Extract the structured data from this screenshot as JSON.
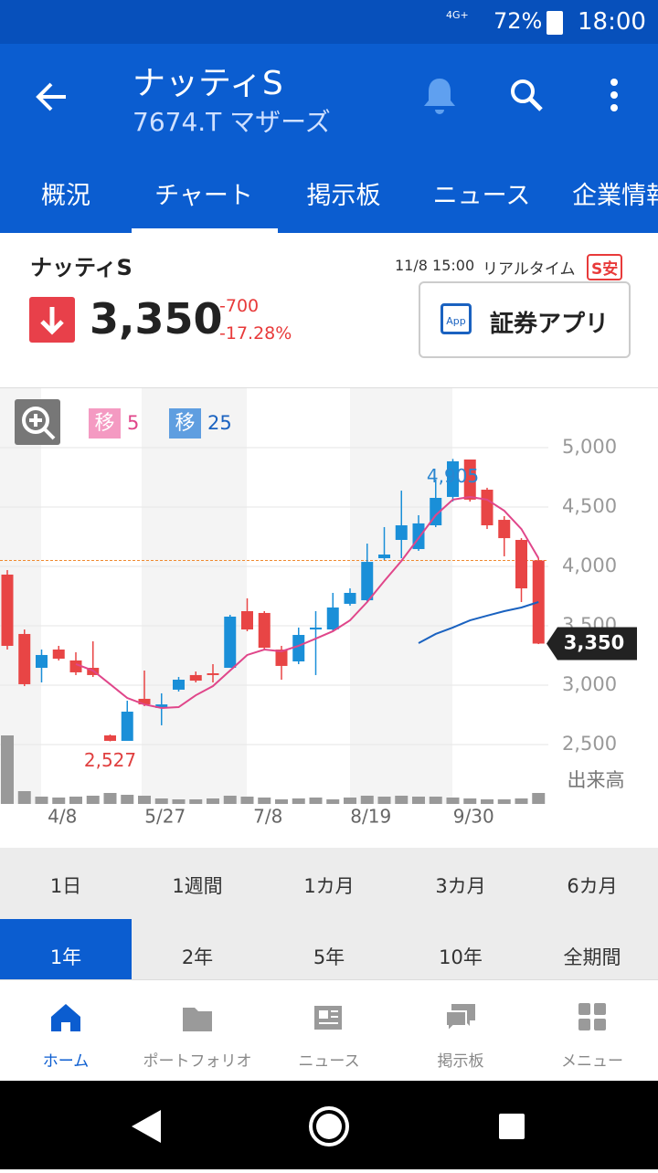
{
  "status_bar": {
    "network": "4G+",
    "battery": "72%",
    "time": "18:00"
  },
  "header": {
    "title": "ナッティS",
    "subtitle": "7674.T マザーズ"
  },
  "tabs": [
    "概況",
    "チャート",
    "掲示板",
    "ニュース",
    "企業情報"
  ],
  "quote": {
    "name": "ナッティS",
    "timestamp": "11/8 15:00",
    "realtime": "リアルタイム",
    "badge": "S安",
    "price": "3,350",
    "change": "-700",
    "change_pct": "-17.28%",
    "app_icon": "App",
    "app_button": "証券アプリ"
  },
  "chart_data": {
    "type": "candlestick",
    "legend": [
      {
        "label": "移",
        "period": 5,
        "color": "#e0468a",
        "box": "#f49ac2"
      },
      {
        "label": "移",
        "period": 25,
        "color": "#1a62c0",
        "box": "#5f9ee0"
      }
    ],
    "ylim": [
      2000,
      5500
    ],
    "yticks": [
      {
        "value": 2500,
        "label": "2,500"
      },
      {
        "value": 3000,
        "label": "3,000"
      },
      {
        "value": 3500,
        "label": "3,500"
      },
      {
        "value": 4000,
        "label": "4,000"
      },
      {
        "value": 4500,
        "label": "4,500"
      },
      {
        "value": 5000,
        "label": "5,000"
      }
    ],
    "categories": [
      null,
      null,
      null,
      "4/8",
      null,
      null,
      null,
      null,
      null,
      "5/27",
      null,
      null,
      null,
      null,
      null,
      "7/8",
      null,
      null,
      null,
      null,
      null,
      "8/19",
      null,
      null,
      null,
      null,
      null,
      "9/30",
      null,
      null,
      null,
      null
    ],
    "open": [
      3931,
      3431,
      3146,
      3300,
      3208,
      3146,
      2577,
      2531,
      2885,
      2808,
      2962,
      3085,
      3100,
      3146,
      3623,
      3608,
      3300,
      3200,
      3469,
      3469,
      3685,
      3715,
      4069,
      4223,
      4146,
      4346,
      4585,
      4900,
      4646,
      4392,
      4223,
      4050
    ],
    "high": [
      3969,
      3469,
      3300,
      3331,
      3277,
      3369,
      2585,
      2869,
      3123,
      2931,
      3069,
      3115,
      3177,
      3592,
      3731,
      3623,
      3331,
      3485,
      3623,
      3777,
      3815,
      4192,
      4331,
      4638,
      4431,
      4731,
      4905,
      4900,
      4662,
      4423,
      4238,
      4069
    ],
    "low": [
      3300,
      2992,
      3023,
      3208,
      3085,
      3069,
      2527,
      2540,
      2823,
      2662,
      2946,
      3023,
      3023,
      3146,
      3454,
      3300,
      3046,
      3177,
      3085,
      3454,
      3669,
      3700,
      4054,
      4069,
      4131,
      4331,
      4546,
      4546,
      4315,
      4085,
      3700,
      3346
    ],
    "close": [
      3331,
      3008,
      3254,
      3223,
      3108,
      3085,
      2531,
      2777,
      2838,
      2838,
      3046,
      3038,
      3085,
      3577,
      3469,
      3315,
      3162,
      3423,
      3485,
      3654,
      3777,
      4038,
      4100,
      4346,
      4362,
      4577,
      4885,
      4562,
      4346,
      4238,
      3815,
      3350
    ],
    "ma5": [
      null,
      null,
      null,
      null,
      3177,
      3123,
      3008,
      2892,
      2838,
      2808,
      2815,
      2915,
      2992,
      3123,
      3254,
      3300,
      3285,
      3331,
      3392,
      3454,
      3546,
      3700,
      3877,
      4046,
      4238,
      4431,
      4562,
      4585,
      4562,
      4469,
      4315,
      4069
    ],
    "ma25": [
      null,
      null,
      null,
      null,
      null,
      null,
      null,
      null,
      null,
      null,
      null,
      null,
      null,
      null,
      null,
      null,
      null,
      null,
      null,
      null,
      null,
      null,
      null,
      null,
      3354,
      3431,
      3485,
      3546,
      3585,
      3623,
      3654,
      3700
    ],
    "volume": [
      75,
      14,
      8,
      7,
      8,
      9,
      12,
      10,
      9,
      6,
      5,
      5,
      6,
      9,
      8,
      7,
      5,
      6,
      7,
      5,
      7,
      9,
      8,
      9,
      8,
      8,
      7,
      6,
      5,
      5,
      6,
      12
    ],
    "volume_label": "出来高",
    "reference_line": 4050,
    "high_label": "4,905",
    "low_label": "2,527",
    "last_label": "3,350",
    "up_color": "#1a8fd8",
    "down_color": "#e84545",
    "grid": true
  },
  "periods": [
    "1日",
    "1週間",
    "1カ月",
    "3カ月",
    "6カ月",
    "1年",
    "2年",
    "5年",
    "10年",
    "全期間"
  ],
  "selected_period": "1年",
  "bottom_nav": [
    "ホーム",
    "ポートフォリオ",
    "ニュース",
    "掲示板",
    "メニュー"
  ]
}
